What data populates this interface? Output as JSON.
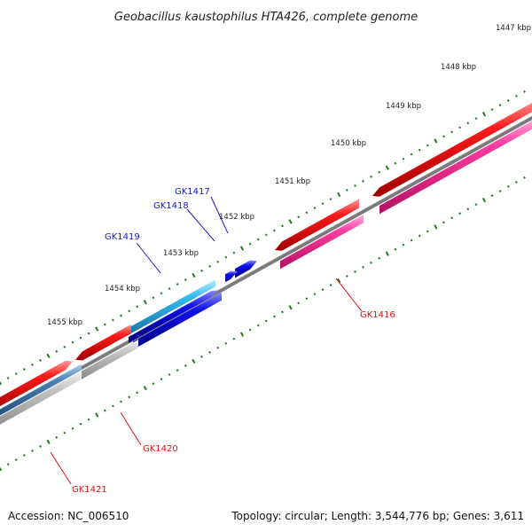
{
  "title": "Geobacillus kaustophilus HTA426, complete genome",
  "footer": {
    "accession": "Accession: NC_006510",
    "topology": "Topology: circular; Length: 3,544,776 bp; Genes: 3,611"
  },
  "ruler": [
    "1447 kbp",
    "1448 kbp",
    "1449 kbp",
    "1450 kbp",
    "1451 kbp",
    "1452 kbp",
    "1453 kbp",
    "1454 kbp",
    "1455 kbp"
  ],
  "genes": {
    "GK1416": "GK1416",
    "GK1417": "GK1417",
    "GK1418": "GK1418",
    "GK1419": "GK1419",
    "GK1420": "GK1420",
    "GK1421": "GK1421"
  },
  "colors": {
    "backbone": "#7a7a7a",
    "red": "#ff1a1a",
    "pink": "#ff3ba0",
    "blue": "#1010ee",
    "cyan": "#33bbee",
    "steel": "#4a7fb5",
    "gray": "#c6c6c6",
    "ticks": "#1e7a1e",
    "label_blue": "#1818c8",
    "label_red": "#dd1111"
  }
}
